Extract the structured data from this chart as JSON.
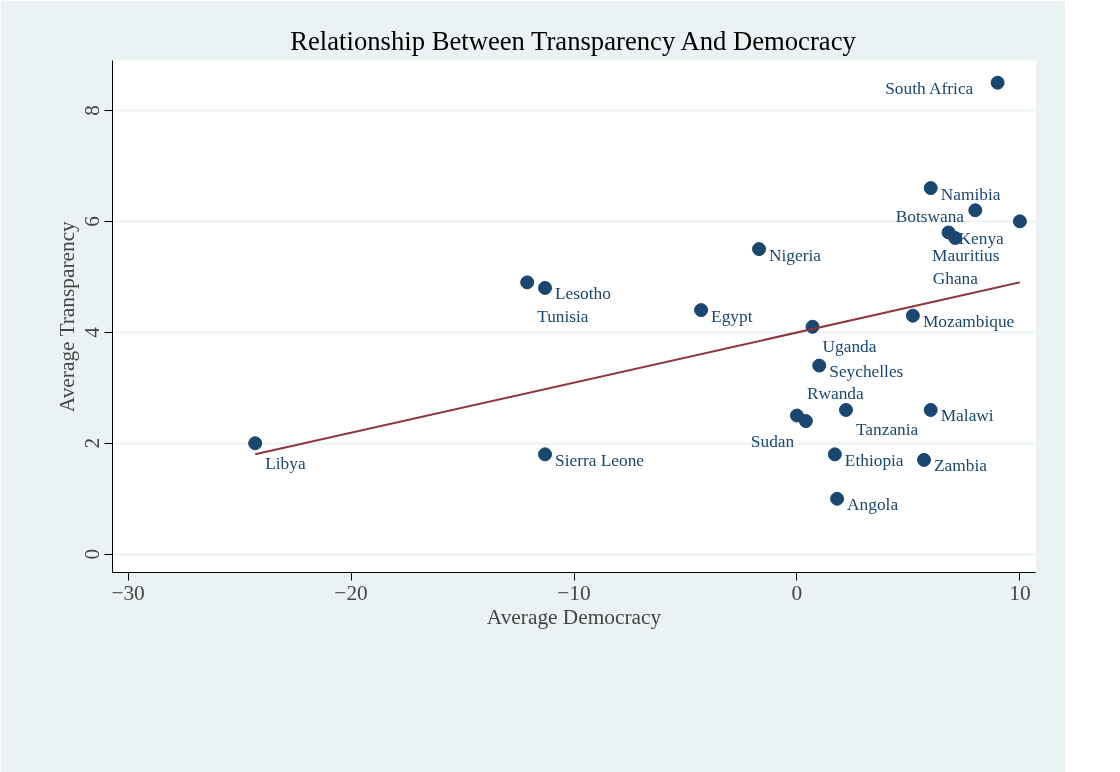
{
  "chart_data": {
    "type": "scatter",
    "title": "Relationship Between Transparency And Democracy",
    "xlabel": "Average Democracy",
    "ylabel": "Average Transparency",
    "xlim": [
      -30.7,
      10.7
    ],
    "ylim": [
      -0.33,
      8.9
    ],
    "xticks": [
      -30,
      -20,
      -10,
      0,
      10
    ],
    "yticks": [
      0,
      2,
      4,
      6,
      8
    ],
    "grid": "y",
    "series": [
      {
        "marker": "circle",
        "color": "#1a476f",
        "x": [
          9.0,
          6.0,
          8.0,
          10.0,
          6.8,
          7.1,
          -1.7,
          -12.1,
          -11.3,
          -4.3,
          0.7,
          5.2,
          1.0,
          2.2,
          6.0,
          0.0,
          0.4,
          -24.3,
          -11.3,
          1.7,
          5.7,
          1.8
        ],
        "values": [
          8.5,
          6.6,
          6.2,
          6.0,
          5.8,
          5.7,
          5.5,
          4.9,
          4.8,
          4.4,
          4.1,
          4.3,
          3.4,
          2.6,
          2.6,
          2.5,
          2.4,
          2.0,
          1.8,
          1.8,
          1.7,
          1.0
        ]
      },
      {
        "type": "line",
        "color": "#90353b",
        "x": [
          -24.3,
          10.0
        ],
        "values": [
          1.8,
          4.9
        ]
      }
    ],
    "annotations": [
      {
        "text": "South Africa",
        "x": 9.0,
        "y": 8.5
      },
      {
        "text": "Namibia",
        "x": 6.0,
        "y": 6.6
      },
      {
        "text": "Botswana",
        "x": 8.0,
        "y": 6.2
      },
      {
        "text": "Mauritius",
        "x": 10.0,
        "y": 6.0
      },
      {
        "text": "Kenya",
        "x": 6.8,
        "y": 5.8
      },
      {
        "text": "Ghana",
        "x": 7.1,
        "y": 5.7
      },
      {
        "text": "Nigeria",
        "x": -1.7,
        "y": 5.5
      },
      {
        "text": "Tunisia",
        "x": -12.1,
        "y": 4.9
      },
      {
        "text": "Lesotho",
        "x": -11.3,
        "y": 4.8
      },
      {
        "text": "Egypt",
        "x": -4.3,
        "y": 4.4
      },
      {
        "text": "Uganda",
        "x": 0.7,
        "y": 4.1
      },
      {
        "text": "Mozambique",
        "x": 5.2,
        "y": 4.3
      },
      {
        "text": "Seychelles",
        "x": 1.0,
        "y": 3.4
      },
      {
        "text": "Tanzania",
        "x": 2.2,
        "y": 2.6
      },
      {
        "text": "Malawi",
        "x": 6.0,
        "y": 2.6
      },
      {
        "text": "Rwanda",
        "x": 0.0,
        "y": 2.5
      },
      {
        "text": "Sudan",
        "x": 0.4,
        "y": 2.4
      },
      {
        "text": "Libya",
        "x": -24.3,
        "y": 2.0
      },
      {
        "text": "Sierra Leone",
        "x": -11.3,
        "y": 1.8
      },
      {
        "text": "Ethiopia",
        "x": 1.7,
        "y": 1.8
      },
      {
        "text": "Zambia",
        "x": 5.7,
        "y": 1.7
      },
      {
        "text": "Angola",
        "x": 1.8,
        "y": 1.0
      }
    ]
  }
}
